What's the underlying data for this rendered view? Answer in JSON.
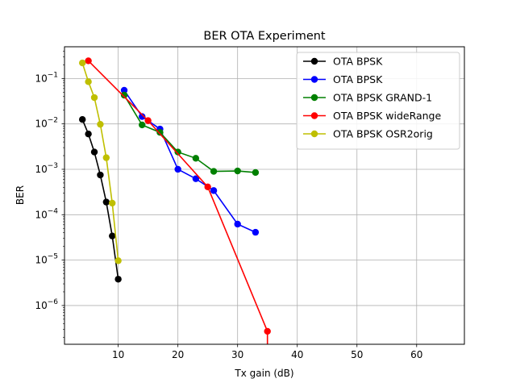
{
  "chart_data": {
    "type": "line",
    "title": "BER OTA Experiment",
    "xlabel": "Tx gain (dB)",
    "ylabel": "BER",
    "xlim": [
      1,
      68
    ],
    "ylim": [
      1.4e-07,
      0.5
    ],
    "yscale": "log",
    "x_ticks": [
      10,
      20,
      30,
      40,
      50,
      60
    ],
    "x_tick_labels": [
      "10",
      "20",
      "30",
      "40",
      "50",
      "60"
    ],
    "y_ticks": [
      1e-06,
      1e-05,
      0.0001,
      0.001,
      0.01,
      0.1
    ],
    "y_tick_exponents": [
      "−6",
      "−5",
      "−4",
      "−3",
      "−2",
      "−1"
    ],
    "y_tick_base": "10",
    "grid": true,
    "legend_position": "top-right",
    "series": [
      {
        "name": "OTA BPSK",
        "color": "#000000",
        "x": [
          4,
          5,
          6,
          7,
          8,
          9,
          10
        ],
        "y": [
          0.0125,
          0.006,
          0.0024,
          0.00075,
          0.00019,
          3.4e-05,
          3.8e-06
        ]
      },
      {
        "name": "OTA BPSK",
        "color": "#0000ff",
        "x": [
          11,
          14,
          17,
          20,
          23,
          26,
          30,
          33
        ],
        "y": [
          0.055,
          0.0145,
          0.0077,
          0.001,
          0.00062,
          0.00034,
          6.2e-05,
          4.1e-05
        ]
      },
      {
        "name": "OTA BPSK GRAND-1",
        "color": "#008000",
        "x": [
          11,
          14,
          17,
          20,
          23,
          26,
          30,
          33
        ],
        "y": [
          0.043,
          0.0095,
          0.0065,
          0.0024,
          0.00175,
          0.0009,
          0.00092,
          0.00085
        ]
      },
      {
        "name": "OTA BPSK wideRange",
        "color": "#ff0000",
        "x": [
          5,
          15,
          25,
          35,
          35
        ],
        "y": [
          0.245,
          0.0118,
          0.00041,
          2.7e-07,
          1e-08
        ]
      },
      {
        "name": "OTA BPSK OSR2orig",
        "color": "#bfbf00",
        "x": [
          4,
          5,
          6,
          7,
          8,
          9,
          10
        ],
        "y": [
          0.22,
          0.085,
          0.038,
          0.0098,
          0.0018,
          0.00018,
          9.7e-06
        ]
      }
    ]
  }
}
